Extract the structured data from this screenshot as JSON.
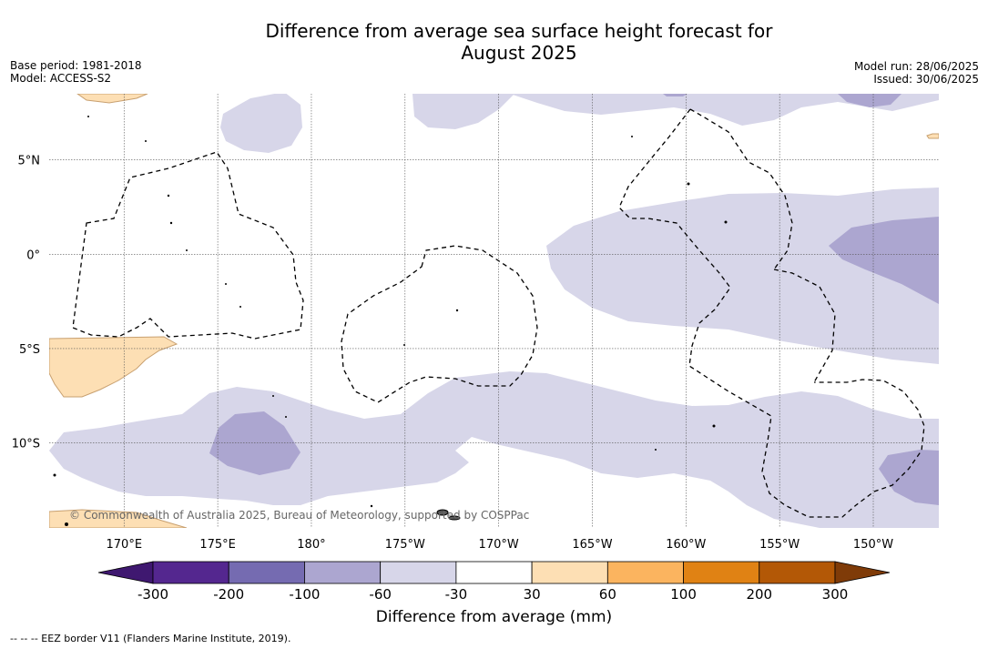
{
  "header": {
    "title": "Difference from average sea surface height forecast for\nAugust 2025",
    "base_period": "Base period: 1981-2018",
    "model": "Model: ACCESS-S2",
    "model_run": "Model run: 28/06/2025",
    "issued": "Issued: 30/06/2025"
  },
  "map": {
    "lon_range": [
      166,
      213.5
    ],
    "lat_range": [
      -14.5,
      8.5
    ],
    "lon_ticks": [
      {
        "value": 170,
        "label": "170°E"
      },
      {
        "value": 175,
        "label": "175°E"
      },
      {
        "value": 180,
        "label": "180°"
      },
      {
        "value": 185,
        "label": "175°W"
      },
      {
        "value": 190,
        "label": "170°W"
      },
      {
        "value": 195,
        "label": "165°W"
      },
      {
        "value": 200,
        "label": "160°W"
      },
      {
        "value": 205,
        "label": "155°W"
      },
      {
        "value": 210,
        "label": "150°W"
      }
    ],
    "lat_ticks": [
      {
        "value": 5,
        "label": "5°N"
      },
      {
        "value": 0,
        "label": "0°"
      },
      {
        "value": -5,
        "label": "5°S"
      },
      {
        "value": -10,
        "label": "10°S"
      }
    ],
    "copyright": "© Commonwealth of Australia 2025, Bureau of Meteorology, supported by COSPPac"
  },
  "colorbar": {
    "levels": [
      "-300",
      "-200",
      "-100",
      "-60",
      "-30",
      "30",
      "60",
      "100",
      "200",
      "300"
    ],
    "colors": [
      "#3f1870",
      "#54278f",
      "#756bb1",
      "#aca6d0",
      "#d7d6e9",
      "#ffffff",
      "#fddfb4",
      "#fbb45f",
      "#e08214",
      "#b35806",
      "#7f3b08"
    ],
    "label": "Difference from average (mm)"
  },
  "legend": {
    "eez_text": "--  --  -- EEZ border V11 (Flanders Marine Institute, 2019)."
  },
  "colors": {
    "land": "#fddfb4",
    "land_edge": "#c8a070",
    "light_purple": "#d7d6e9",
    "mid_purple": "#aca6d0"
  }
}
